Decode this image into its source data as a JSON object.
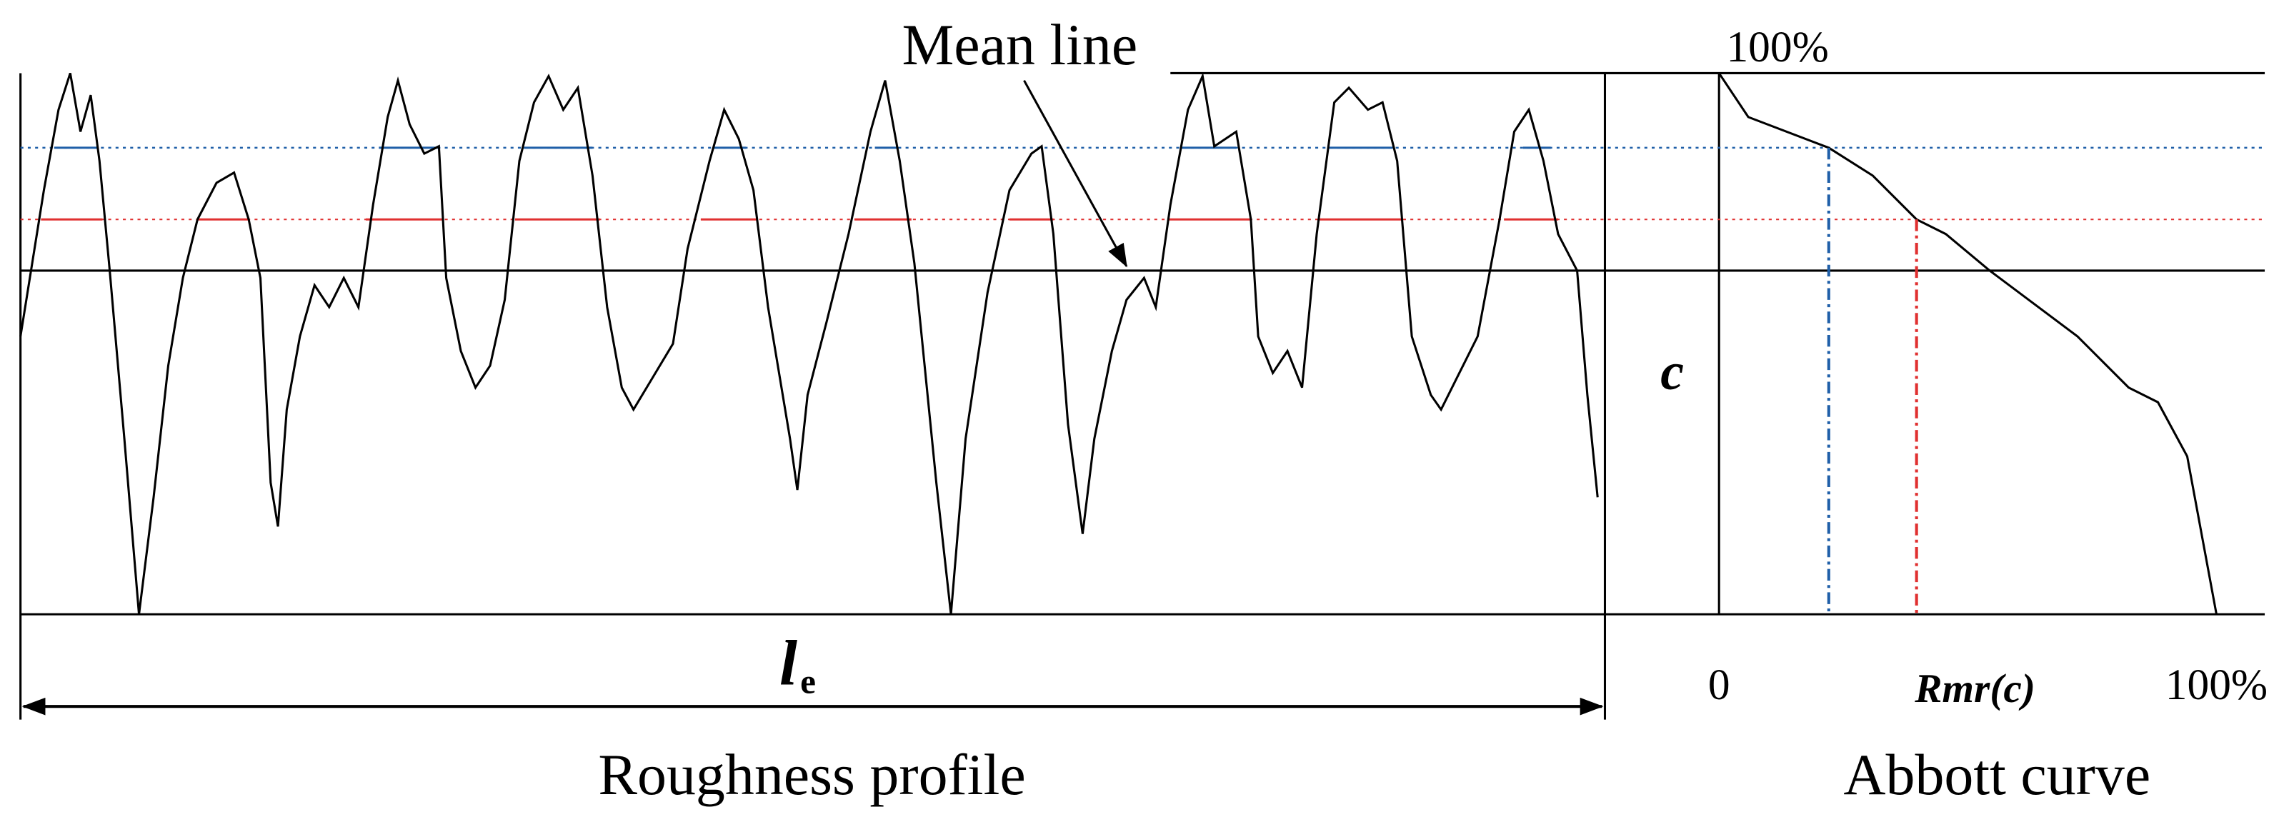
{
  "annotation": "Mean line",
  "abbott_top_label": "100%",
  "height_label": "c",
  "abbott_x_start": "0",
  "abbott_x_label": "Rmr(c)",
  "abbott_x_end": "100%",
  "length_label": {
    "main": "l",
    "subscript": "e"
  },
  "profile_caption": "Roughness profile",
  "abbott_caption": "Abbott curve"
}
